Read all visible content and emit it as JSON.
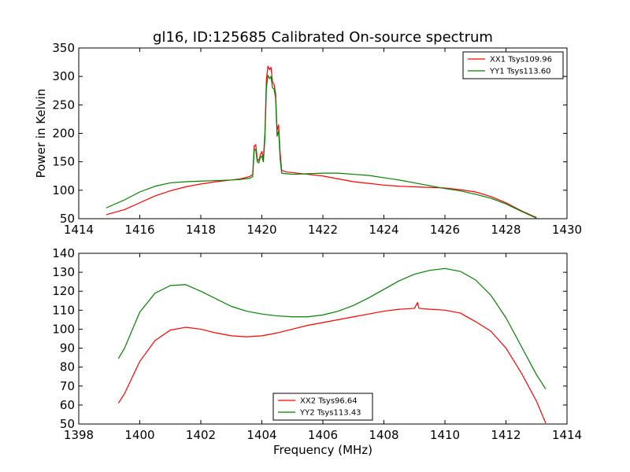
{
  "figure": {
    "title": "gl16, ID:125685 Calibrated On-source spectrum",
    "xlabel": "Frequency (MHz)"
  },
  "chart_data": [
    {
      "type": "line",
      "title": "gl16, ID:125685 Calibrated On-source spectrum",
      "xlabel": "",
      "ylabel": "Power in Kelvin",
      "xlim": [
        1414,
        1430
      ],
      "ylim": [
        50,
        350
      ],
      "xticks": [
        1414,
        1416,
        1418,
        1420,
        1422,
        1424,
        1426,
        1428,
        1430
      ],
      "yticks": [
        50,
        100,
        150,
        200,
        250,
        300,
        350
      ],
      "legend_position": "top-right",
      "series": [
        {
          "name": "XX1 Tsys109.96",
          "color": "#ff0000",
          "points": [
            [
              1414.9,
              57
            ],
            [
              1415.5,
              66
            ],
            [
              1416,
              78
            ],
            [
              1416.5,
              90
            ],
            [
              1417,
              99
            ],
            [
              1417.5,
              106
            ],
            [
              1418,
              111
            ],
            [
              1418.5,
              115
            ],
            [
              1419,
              118
            ],
            [
              1419.3,
              120
            ],
            [
              1419.6,
              124
            ],
            [
              1419.7,
              128
            ],
            [
              1419.75,
              178
            ],
            [
              1419.8,
              180
            ],
            [
              1419.85,
              155
            ],
            [
              1419.9,
              152
            ],
            [
              1419.95,
              162
            ],
            [
              1420.0,
              168
            ],
            [
              1420.05,
              155
            ],
            [
              1420.1,
              200
            ],
            [
              1420.15,
              295
            ],
            [
              1420.2,
              318
            ],
            [
              1420.25,
              312
            ],
            [
              1420.3,
              316
            ],
            [
              1420.35,
              290
            ],
            [
              1420.4,
              286
            ],
            [
              1420.45,
              270
            ],
            [
              1420.5,
              205
            ],
            [
              1420.55,
              215
            ],
            [
              1420.6,
              165
            ],
            [
              1420.65,
              135
            ],
            [
              1420.8,
              132
            ],
            [
              1421,
              131
            ],
            [
              1421.5,
              128
            ],
            [
              1422,
              125
            ],
            [
              1422.5,
              120
            ],
            [
              1423,
              115
            ],
            [
              1423.5,
              112
            ],
            [
              1424,
              109
            ],
            [
              1424.5,
              107
            ],
            [
              1425,
              106
            ],
            [
              1425.5,
              105
            ],
            [
              1426,
              104
            ],
            [
              1426.5,
              101
            ],
            [
              1427,
              97
            ],
            [
              1427.5,
              89
            ],
            [
              1428,
              78
            ],
            [
              1428.5,
              64
            ],
            [
              1429,
              52
            ]
          ]
        },
        {
          "name": "YY1 Tsys113.60",
          "color": "#008000",
          "points": [
            [
              1414.9,
              69
            ],
            [
              1415.5,
              83
            ],
            [
              1416,
              97
            ],
            [
              1416.5,
              107
            ],
            [
              1417,
              113
            ],
            [
              1417.5,
              115
            ],
            [
              1418,
              116
            ],
            [
              1418.5,
              117
            ],
            [
              1419,
              118
            ],
            [
              1419.3,
              119
            ],
            [
              1419.6,
              121
            ],
            [
              1419.7,
              124
            ],
            [
              1419.75,
              170
            ],
            [
              1419.8,
              172
            ],
            [
              1419.85,
              150
            ],
            [
              1419.9,
              148
            ],
            [
              1419.95,
              158
            ],
            [
              1420.0,
              160
            ],
            [
              1420.05,
              150
            ],
            [
              1420.1,
              190
            ],
            [
              1420.15,
              280
            ],
            [
              1420.2,
              302
            ],
            [
              1420.25,
              296
            ],
            [
              1420.3,
              300
            ],
            [
              1420.35,
              280
            ],
            [
              1420.4,
              278
            ],
            [
              1420.45,
              262
            ],
            [
              1420.5,
              195
            ],
            [
              1420.55,
              205
            ],
            [
              1420.6,
              155
            ],
            [
              1420.65,
              130
            ],
            [
              1420.8,
              129
            ],
            [
              1421,
              128
            ],
            [
              1421.5,
              129
            ],
            [
              1422,
              130
            ],
            [
              1422.5,
              130
            ],
            [
              1423,
              128
            ],
            [
              1423.5,
              126
            ],
            [
              1424,
              122
            ],
            [
              1424.5,
              118
            ],
            [
              1425,
              113
            ],
            [
              1425.5,
              108
            ],
            [
              1426,
              103
            ],
            [
              1426.5,
              99
            ],
            [
              1427,
              93
            ],
            [
              1427.5,
              86
            ],
            [
              1428,
              76
            ],
            [
              1428.5,
              63
            ],
            [
              1429,
              51
            ]
          ]
        }
      ]
    },
    {
      "type": "line",
      "title": "",
      "xlabel": "Frequency (MHz)",
      "ylabel": "",
      "xlim": [
        1398,
        1414
      ],
      "ylim": [
        50,
        140
      ],
      "xticks": [
        1398,
        1400,
        1402,
        1404,
        1406,
        1408,
        1410,
        1412,
        1414
      ],
      "yticks": [
        50,
        60,
        70,
        80,
        90,
        100,
        110,
        120,
        130,
        140
      ],
      "legend_position": "bottom-center",
      "series": [
        {
          "name": "XX2 Tsys96.64",
          "color": "#ff0000",
          "points": [
            [
              1399.3,
              61
            ],
            [
              1399.5,
              66
            ],
            [
              1400,
              83
            ],
            [
              1400.5,
              94
            ],
            [
              1401,
              99.5
            ],
            [
              1401.5,
              101
            ],
            [
              1402,
              100
            ],
            [
              1402.5,
              98
            ],
            [
              1403,
              96.5
            ],
            [
              1403.5,
              96
            ],
            [
              1404,
              96.5
            ],
            [
              1404.5,
              98
            ],
            [
              1405,
              100
            ],
            [
              1405.5,
              102
            ],
            [
              1406,
              103.5
            ],
            [
              1406.5,
              105
            ],
            [
              1407,
              106.5
            ],
            [
              1407.5,
              108
            ],
            [
              1408,
              109.5
            ],
            [
              1408.5,
              110.5
            ],
            [
              1409,
              111
            ],
            [
              1409.1,
              114
            ],
            [
              1409.15,
              111
            ],
            [
              1409.5,
              110.5
            ],
            [
              1410,
              110
            ],
            [
              1410.5,
              108.5
            ],
            [
              1411,
              104
            ],
            [
              1411.5,
              99
            ],
            [
              1412,
              90
            ],
            [
              1412.5,
              77
            ],
            [
              1413,
              62
            ],
            [
              1413.3,
              50.5
            ]
          ]
        },
        {
          "name": "YY2 Tsys113.43",
          "color": "#008000",
          "points": [
            [
              1399.3,
              84.5
            ],
            [
              1399.5,
              90
            ],
            [
              1400,
              109
            ],
            [
              1400.5,
              119
            ],
            [
              1401,
              123
            ],
            [
              1401.5,
              123.5
            ],
            [
              1402,
              120
            ],
            [
              1402.5,
              116
            ],
            [
              1403,
              112
            ],
            [
              1403.5,
              109.5
            ],
            [
              1404,
              108
            ],
            [
              1404.5,
              107
            ],
            [
              1405,
              106.5
            ],
            [
              1405.5,
              106.5
            ],
            [
              1406,
              107.5
            ],
            [
              1406.5,
              109.5
            ],
            [
              1407,
              112.5
            ],
            [
              1407.5,
              116.5
            ],
            [
              1408,
              121
            ],
            [
              1408.5,
              125.5
            ],
            [
              1409,
              129
            ],
            [
              1409.5,
              131
            ],
            [
              1410,
              132
            ],
            [
              1410.5,
              130.5
            ],
            [
              1411,
              126
            ],
            [
              1411.5,
              118
            ],
            [
              1412,
              106
            ],
            [
              1412.5,
              91
            ],
            [
              1413,
              76
            ],
            [
              1413.3,
              68.5
            ]
          ]
        }
      ]
    }
  ]
}
